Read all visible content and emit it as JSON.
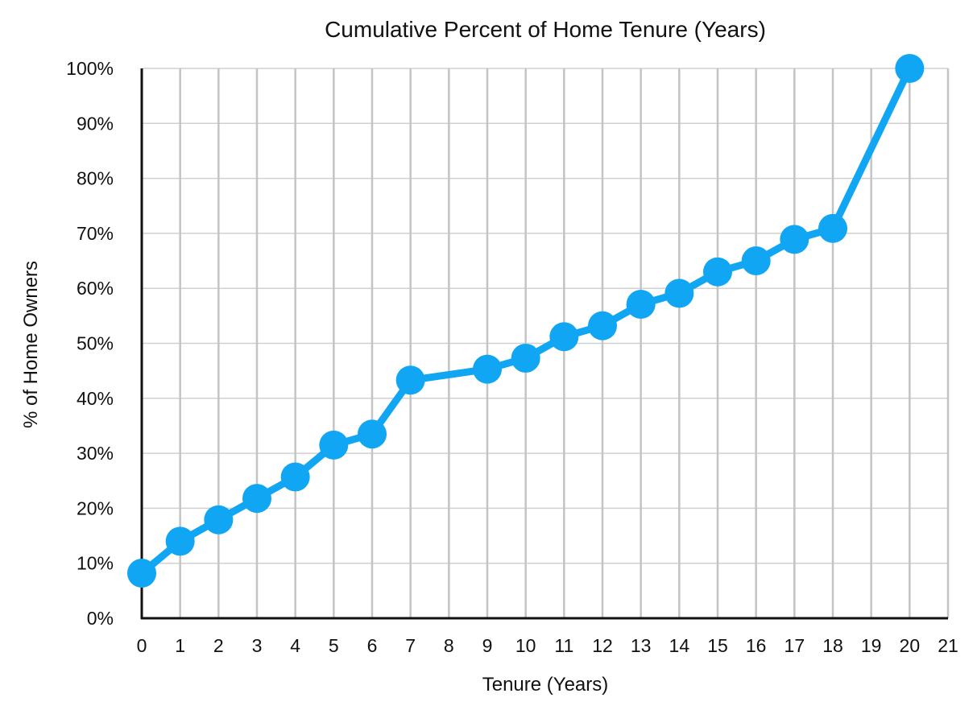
{
  "colors": {
    "series": "#11a6f3",
    "grid": "#c4c4c4",
    "axis": "#111111",
    "text": "#111111",
    "background": "#ffffff"
  },
  "chart_data": {
    "type": "line",
    "title": "Cumulative Percent of Home Tenure (Years)",
    "xlabel": "Tenure (Years)",
    "ylabel": "% of Home Owners",
    "xlim": [
      0,
      21
    ],
    "ylim": [
      0,
      100
    ],
    "x_ticks": [
      "0",
      "1",
      "2",
      "3",
      "4",
      "5",
      "6",
      "7",
      "8",
      "9",
      "10",
      "11",
      "12",
      "13",
      "14",
      "15",
      "16",
      "17",
      "18",
      "19",
      "20",
      "21"
    ],
    "y_ticks": [
      "0%",
      "10%",
      "20%",
      "30%",
      "40%",
      "50%",
      "60%",
      "70%",
      "80%",
      "90%",
      "100%"
    ],
    "grid": true,
    "legend": "none",
    "series": [
      {
        "x": [
          0,
          1,
          2,
          3,
          4,
          5,
          6,
          7,
          9,
          10,
          11,
          12,
          13,
          14,
          15,
          16,
          17,
          18,
          20
        ],
        "values": [
          8.2,
          14.0,
          17.9,
          21.8,
          25.7,
          31.5,
          33.5,
          43.3,
          45.3,
          47.3,
          51.2,
          53.2,
          57.1,
          59.1,
          63.0,
          65.0,
          68.9,
          70.9,
          100.0
        ]
      }
    ]
  }
}
